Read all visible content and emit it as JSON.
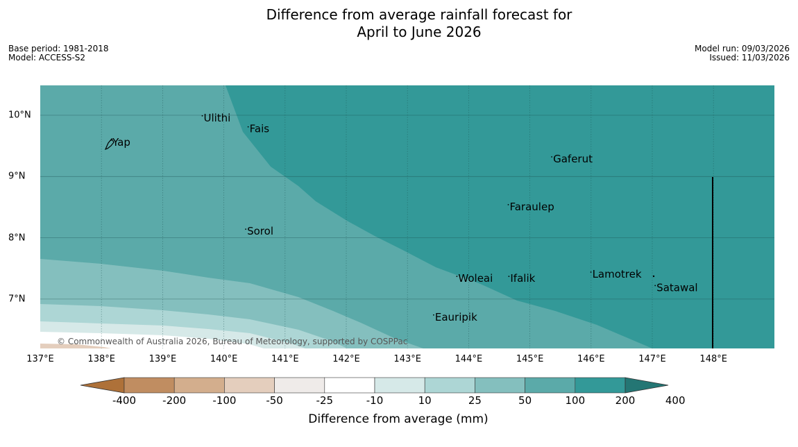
{
  "title": {
    "line1": "Difference from average rainfall forecast for",
    "line2": "April to June 2026"
  },
  "meta": {
    "base_period": "Base period: 1981-2018",
    "model": "Model: ACCESS-S2",
    "model_run": "Model run: 09/03/2026",
    "issued": "Issued: 11/03/2026"
  },
  "axes": {
    "lon_ticks": [
      "137°E",
      "138°E",
      "139°E",
      "140°E",
      "141°E",
      "142°E",
      "143°E",
      "144°E",
      "145°E",
      "146°E",
      "147°E",
      "148°E"
    ],
    "lat_ticks": [
      "10°N",
      "9°N",
      "8°N",
      "7°N"
    ]
  },
  "places": [
    {
      "name": "Ulithi",
      "lon": 139.67,
      "lat": 9.9
    },
    {
      "name": "Fais",
      "lon": 140.42,
      "lat": 9.72
    },
    {
      "name": "Yap",
      "lon": 138.18,
      "lat": 9.5
    },
    {
      "name": "Gaferut",
      "lon": 145.38,
      "lat": 9.23
    },
    {
      "name": "Faraulep",
      "lon": 144.67,
      "lat": 8.45
    },
    {
      "name": "Sorol",
      "lon": 140.38,
      "lat": 8.05
    },
    {
      "name": "Lamotrek",
      "lon": 146.02,
      "lat": 7.35
    },
    {
      "name": "Woleai",
      "lon": 143.83,
      "lat": 7.28
    },
    {
      "name": "Ifalik",
      "lon": 144.68,
      "lat": 7.28
    },
    {
      "name": "Satawal",
      "lon": 147.07,
      "lat": 7.13
    },
    {
      "name": "Eauripik",
      "lon": 143.45,
      "lat": 6.65
    }
  ],
  "copyright": "© Commonwealth of Australia 2026, Bureau of Meteorology, supported by COSPPac",
  "colorbar": {
    "title": "Difference from average (mm)",
    "labels": [
      "-400",
      "-200",
      "-100",
      "-50",
      "-25",
      "-10",
      "10",
      "25",
      "50",
      "100",
      "200",
      "400"
    ],
    "colors": [
      "#ae7139",
      "#c08d61",
      "#d3ae8d",
      "#e4cebd",
      "#efebe9",
      "#ffffff",
      "#d6e9e8",
      "#add6d5",
      "#84bfbe",
      "#5baaa9",
      "#339998",
      "#247674"
    ]
  }
}
